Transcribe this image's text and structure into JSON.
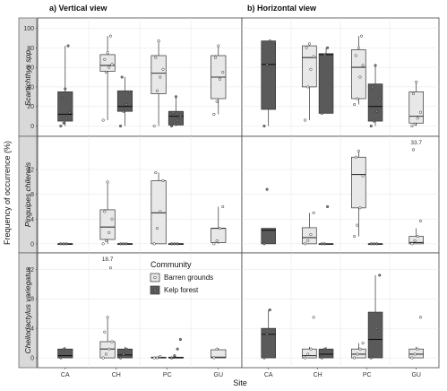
{
  "chart_data": {
    "type": "box",
    "x_axis_title": "Site",
    "y_axis_title": "Frequency of occurrence (%)",
    "columns": [
      {
        "key": "vertical",
        "title": "a) Vertical view"
      },
      {
        "key": "horizontal",
        "title": "b) Horizontal view"
      }
    ],
    "sites": [
      "CA",
      "CH",
      "PC",
      "GU"
    ],
    "communities": [
      {
        "key": "barren",
        "name": "Barren grounds",
        "color": "#e8e8e8"
      },
      {
        "key": "kelp",
        "name": "Kelp forest",
        "color": "#5a5a5a"
      }
    ],
    "legend": {
      "title": "Community",
      "position": "inside-bottom-left-panel"
    },
    "rows": [
      {
        "species": "Scartichthys spp.",
        "ylim": [
          -5,
          105
        ],
        "yticks": [
          "0",
          "20",
          "40",
          "60",
          "80",
          "100"
        ],
        "ytick_values": [
          0,
          20,
          40,
          60,
          80,
          100
        ],
        "panels": {
          "vertical": [
            {
              "site": "CA",
              "community": "kelp",
              "q1": 5,
              "median": 12,
              "q3": 35,
              "whisker_low": 0,
              "whisker_high": 82,
              "points": [
                0,
                3,
                8,
                14,
                28,
                38,
                82
              ]
            },
            {
              "site": "CH",
              "community": "barren",
              "q1": 56,
              "median": 62,
              "q3": 73,
              "whisker_low": 6,
              "whisker_high": 92,
              "points": [
                6,
                55,
                60,
                63,
                68,
                75,
                92
              ]
            },
            {
              "site": "CH",
              "community": "kelp",
              "q1": 15,
              "median": 20,
              "q3": 36,
              "whisker_low": 0,
              "whisker_high": 50,
              "points": [
                0,
                15,
                22,
                35,
                50
              ]
            },
            {
              "site": "PC",
              "community": "barren",
              "q1": 33,
              "median": 54,
              "q3": 72,
              "whisker_low": 0,
              "whisker_high": 87,
              "points": [
                0,
                36,
                50,
                58,
                70,
                87
              ]
            },
            {
              "site": "PC",
              "community": "kelp",
              "q1": 1,
              "median": 10,
              "q3": 15,
              "whisker_low": 0,
              "whisker_high": 30,
              "points": [
                0,
                2,
                6,
                10,
                14,
                30
              ]
            },
            {
              "site": "GU",
              "community": "barren",
              "q1": 28,
              "median": 50,
              "q3": 72,
              "whisker_low": 12,
              "whisker_high": 82,
              "points": [
                12,
                25,
                48,
                55,
                70,
                82
              ]
            }
          ],
          "horizontal": [
            {
              "site": "CA",
              "community": "kelp",
              "q1": 17,
              "median": 63,
              "q3": 87,
              "whisker_low": 0,
              "whisker_high": 87,
              "points": [
                0,
                63,
                87
              ]
            },
            {
              "site": "CH",
              "community": "barren",
              "q1": 40,
              "median": 70,
              "q3": 82,
              "whisker_low": 6,
              "whisker_high": 84,
              "points": [
                6,
                40,
                58,
                71,
                80,
                84
              ]
            },
            {
              "site": "CH",
              "community": "kelp",
              "q1": 13,
              "median": 73,
              "q3": 74,
              "whisker_low": 13,
              "whisker_high": 80,
              "points": [
                13,
                73,
                80
              ]
            },
            {
              "site": "PC",
              "community": "barren",
              "q1": 28,
              "median": 60,
              "q3": 78,
              "whisker_low": 22,
              "whisker_high": 92,
              "points": [
                22,
                28,
                50,
                62,
                72,
                80,
                92
              ]
            },
            {
              "site": "PC",
              "community": "kelp",
              "q1": 5,
              "median": 20,
              "q3": 43,
              "whisker_low": 0,
              "whisker_high": 62,
              "points": [
                0,
                5,
                15,
                28,
                40,
                62
              ]
            },
            {
              "site": "GU",
              "community": "barren",
              "q1": 3,
              "median": 10,
              "q3": 35,
              "whisker_low": 0,
              "whisker_high": 45,
              "points": [
                0,
                2,
                8,
                14,
                33,
                45
              ]
            }
          ]
        }
      },
      {
        "species": "Pinguipes chilensis",
        "ylim": [
          -0.6,
          16.5
        ],
        "yticks": [
          "0",
          "4",
          "8",
          "12"
        ],
        "ytick_values": [
          0,
          4,
          8,
          12
        ],
        "panels": {
          "vertical": [
            {
              "site": "CA",
              "community": "kelp",
              "q1": 0,
              "median": 0,
              "q3": 0,
              "whisker_low": 0,
              "whisker_high": 0,
              "points": [
                0,
                0,
                0
              ]
            },
            {
              "site": "CH",
              "community": "barren",
              "q1": 0.7,
              "median": 2.7,
              "q3": 5.5,
              "whisker_low": 0,
              "whisker_high": 10,
              "points": [
                0,
                0.5,
                1.8,
                4,
                5.2,
                10
              ]
            },
            {
              "site": "CH",
              "community": "kelp",
              "q1": 0,
              "median": 0,
              "q3": 0,
              "whisker_low": 0,
              "whisker_high": 0,
              "points": [
                0,
                0,
                0
              ]
            },
            {
              "site": "PC",
              "community": "barren",
              "q1": 0,
              "median": 5,
              "q3": 10.2,
              "whisker_low": 0,
              "whisker_high": 11.5,
              "points": [
                0,
                2.5,
                5.2,
                10.2,
                11.5
              ]
            },
            {
              "site": "PC",
              "community": "kelp",
              "q1": 0,
              "median": 0,
              "q3": 0,
              "whisker_low": 0,
              "whisker_high": 0,
              "points": [
                0,
                0,
                0
              ]
            },
            {
              "site": "GU",
              "community": "barren",
              "q1": 0.2,
              "median": 2.5,
              "q3": 2.5,
              "whisker_low": 0,
              "whisker_high": 6,
              "points": [
                0,
                0.5,
                2.5,
                6
              ]
            }
          ],
          "horizontal": [
            {
              "site": "CA",
              "community": "kelp",
              "q1": 0,
              "median": 2.2,
              "q3": 2.5,
              "whisker_low": 0,
              "whisker_high": 2.5,
              "points": [
                0,
                8.8
              ]
            },
            {
              "site": "CH",
              "community": "barren",
              "q1": 0,
              "median": 1,
              "q3": 2.6,
              "whisker_low": 0,
              "whisker_high": 5,
              "points": [
                0,
                0.5,
                1.5,
                5
              ]
            },
            {
              "site": "CH",
              "community": "kelp",
              "q1": 0,
              "median": 0,
              "q3": 0,
              "whisker_low": 0,
              "whisker_high": 0,
              "points": [
                0,
                0,
                6
              ]
            },
            {
              "site": "PC",
              "community": "barren",
              "q1": 5.8,
              "median": 11.2,
              "q3": 14,
              "whisker_low": 1.2,
              "whisker_high": 15,
              "points": [
                1.2,
                3,
                5.8,
                11,
                14,
                15
              ]
            },
            {
              "site": "PC",
              "community": "kelp",
              "q1": 0,
              "median": 0,
              "q3": 0,
              "whisker_low": 0,
              "whisker_high": 0,
              "points": [
                0,
                0,
                0
              ]
            },
            {
              "site": "GU",
              "community": "barren",
              "q1": 0,
              "median": 0.2,
              "q3": 1.2,
              "whisker_low": 0,
              "whisker_high": 2.5,
              "points": [
                0,
                0.5,
                1.2,
                3.7,
                15.2
              ],
              "outlier_label": "33.7",
              "outlier_value": 15.8
            }
          ]
        }
      },
      {
        "species": "Cheilodactylus variegatus",
        "ylim": [
          -0.6,
          13.5
        ],
        "yticks": [
          "0",
          "4",
          "8",
          "12"
        ],
        "ytick_values": [
          0,
          4,
          8,
          12
        ],
        "panels": {
          "vertical": [
            {
              "site": "CA",
              "community": "kelp",
              "q1": 0,
              "median": 0.3,
              "q3": 1.2,
              "whisker_low": 0,
              "whisker_high": 1.5,
              "points": [
                0,
                1.2
              ]
            },
            {
              "site": "CH",
              "community": "barren",
              "q1": 0,
              "median": 1.2,
              "q3": 2.2,
              "whisker_low": 0,
              "whisker_high": 5.5,
              "points": [
                0,
                0.5,
                1.2,
                2.2,
                3.5,
                5.5,
                12.2
              ],
              "outlier_label": "18.7",
              "outlier_value": 12.9
            },
            {
              "site": "CH",
              "community": "kelp",
              "q1": 0,
              "median": 0.4,
              "q3": 1.2,
              "whisker_low": 0,
              "whisker_high": 1.5,
              "points": [
                0,
                0.5,
                1.2
              ]
            },
            {
              "site": "PC",
              "community": "barren",
              "q1": 0,
              "median": 0,
              "q3": 0.1,
              "whisker_low": 0,
              "whisker_high": 0.2,
              "points": [
                0,
                0,
                0.2
              ]
            },
            {
              "site": "PC",
              "community": "kelp",
              "q1": 0,
              "median": 0,
              "q3": 0.1,
              "whisker_low": 0,
              "whisker_high": 0.2,
              "points": [
                0,
                0.3,
                1.2,
                2.5
              ]
            },
            {
              "site": "GU",
              "community": "barren",
              "q1": 0,
              "median": 0.1,
              "q3": 1.1,
              "whisker_low": 0,
              "whisker_high": 1.3,
              "points": [
                0,
                1.2
              ]
            }
          ],
          "horizontal": [
            {
              "site": "CA",
              "community": "kelp",
              "q1": 0,
              "median": 3.2,
              "q3": 4,
              "whisker_low": 0,
              "whisker_high": 6.5,
              "points": [
                0,
                3.2,
                6.5
              ]
            },
            {
              "site": "CH",
              "community": "barren",
              "q1": 0,
              "median": 0.3,
              "q3": 1.2,
              "whisker_low": 0,
              "whisker_high": 1.5,
              "points": [
                0,
                0.5,
                1.2,
                5.5
              ]
            },
            {
              "site": "CH",
              "community": "kelp",
              "q1": 0,
              "median": 0.5,
              "q3": 1.2,
              "whisker_low": 0,
              "whisker_high": 1.5,
              "points": [
                0,
                1.2
              ]
            },
            {
              "site": "PC",
              "community": "barren",
              "q1": 0,
              "median": 0.5,
              "q3": 1.2,
              "whisker_low": 0,
              "whisker_high": 2,
              "points": [
                0,
                0.5,
                1.2,
                2
              ]
            },
            {
              "site": "PC",
              "community": "kelp",
              "q1": 0,
              "median": 2.5,
              "q3": 6.2,
              "whisker_low": 0,
              "whisker_high": 11.2,
              "points": [
                0,
                1.5,
                4,
                11.2
              ]
            },
            {
              "site": "GU",
              "community": "barren",
              "q1": 0,
              "median": 0.5,
              "q3": 1.2,
              "whisker_low": 0,
              "whisker_high": 1.5,
              "points": [
                0,
                0.5,
                1.2,
                5.5
              ]
            }
          ]
        }
      }
    ]
  },
  "colors": {
    "strip_bg": "#d9d9d9",
    "frame": "#444444",
    "grid": "#e6e6e6",
    "barren_fill": "#e8e8e8",
    "kelp_fill": "#5a5a5a",
    "box_stroke": "#333333",
    "point_fill": "#ffffff",
    "point_stroke": "#222222"
  }
}
